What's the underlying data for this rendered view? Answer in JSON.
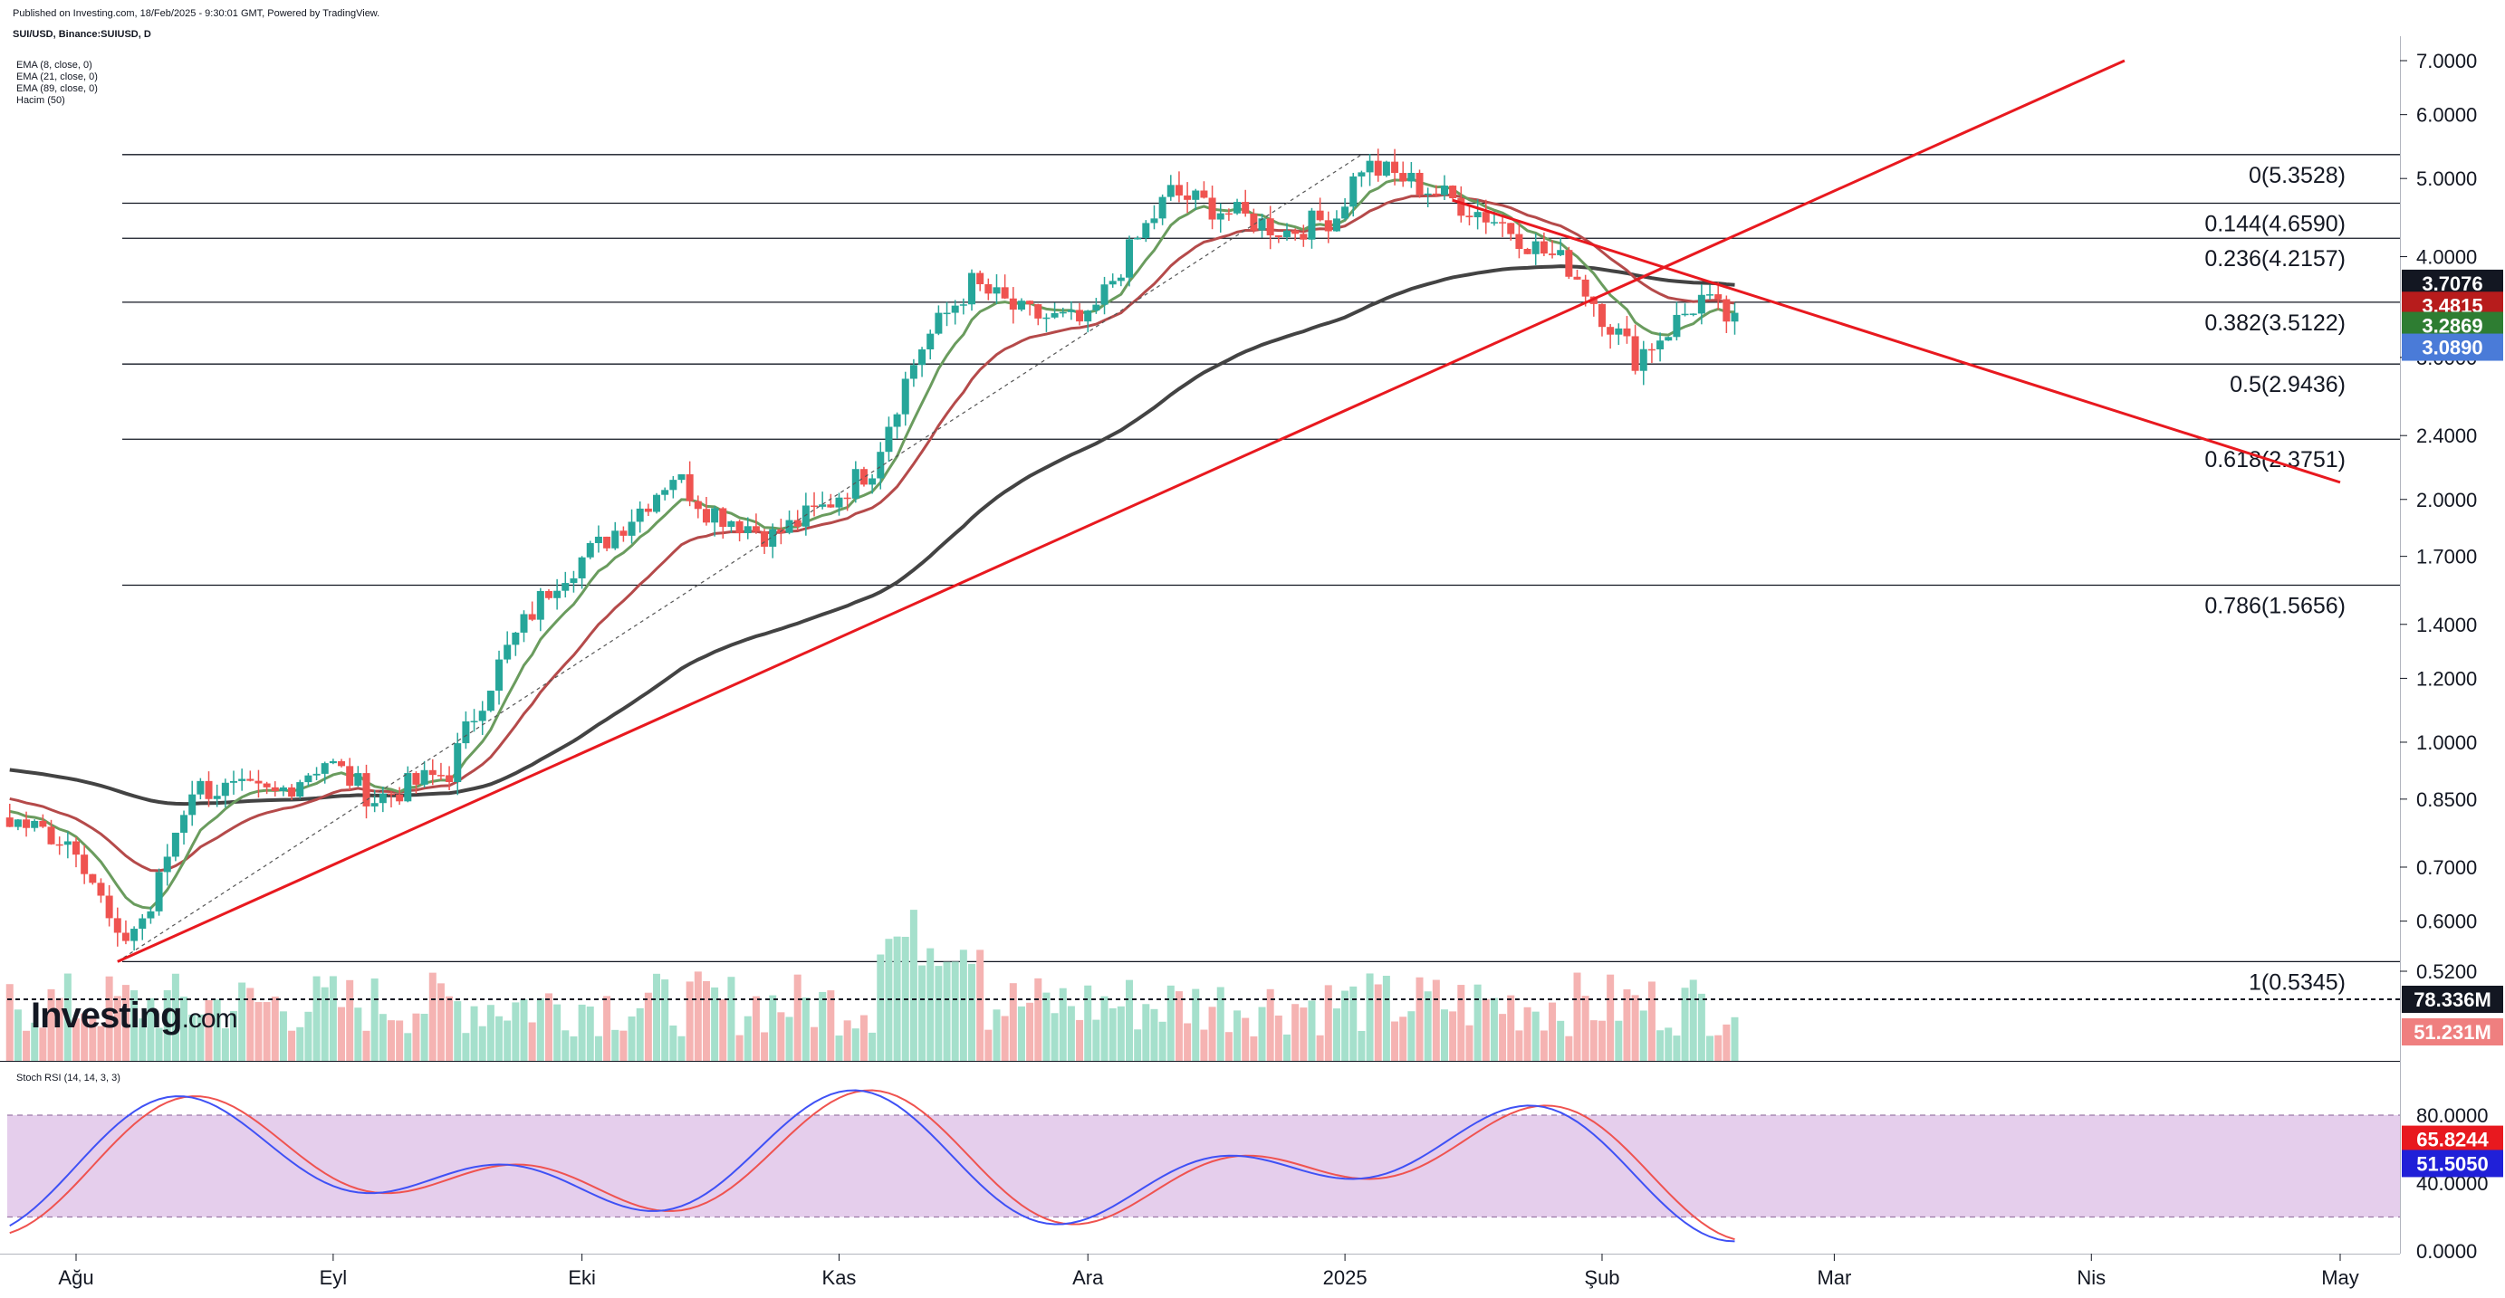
{
  "header": {
    "published": "Published on Investing.com, 18/Feb/2025 - 9:30:01 GMT, Powered by TradingView.",
    "symbol": "SUI/USD, Binance:SUIUSD, D"
  },
  "legend": [
    "EMA (8, close, 0)",
    "EMA (21, close, 0)",
    "EMA (89, close, 0)",
    "Hacim (50)"
  ],
  "stoch_label": "Stoch RSI (14, 14, 3, 3)",
  "logo": {
    "text": "Investing",
    "suffix": ".com"
  },
  "colors": {
    "up": "#26a69a",
    "down": "#ef5350",
    "ema8": "#6a9c5e",
    "ema21": "#b54a4a",
    "ema89": "#434343",
    "trend": "#e8191f",
    "stoch_k": "#3f51f5",
    "stoch_d": "#ef5350",
    "stoch_band": "#e1c6e9"
  },
  "chart_data": {
    "type": "candlestick",
    "symbol": "SUI/USD",
    "timeframe": "D",
    "price_axis": {
      "scale": "log",
      "ticks": [
        "7.0000",
        "6.0000",
        "5.0000",
        "4.0000",
        "3.0000",
        "2.4000",
        "2.0000",
        "1.7000",
        "1.4000",
        "1.2000",
        "1.0000",
        "0.8500",
        "0.7000",
        "0.6000",
        "0.5200"
      ]
    },
    "time_axis": {
      "labels": [
        "Ağu",
        "Eyl",
        "Eki",
        "Kas",
        "Ara",
        "2025",
        "Şub",
        "Mar",
        "Nis",
        "May"
      ]
    },
    "fibonacci": [
      {
        "label": "0(5.3528)",
        "level": 0,
        "price": 5.3528
      },
      {
        "label": "0.144(4.6590)",
        "level": 0.144,
        "price": 4.659
      },
      {
        "label": "0.236(4.2157)",
        "level": 0.236,
        "price": 4.2157
      },
      {
        "label": "0.382(3.5122)",
        "level": 0.382,
        "price": 3.5122
      },
      {
        "label": "0.5(2.9436)",
        "level": 0.5,
        "price": 2.9436
      },
      {
        "label": "0.618(2.3751)",
        "level": 0.618,
        "price": 2.3751
      },
      {
        "label": "0.786(1.5656)",
        "level": 0.786,
        "price": 1.5656
      },
      {
        "label": "1(0.5345)",
        "level": 1,
        "price": 0.5345
      }
    ],
    "price_badges": [
      {
        "label": "3.7076",
        "price": 3.7076,
        "color": "#131722"
      },
      {
        "label": "3.4815",
        "price": 3.4815,
        "color": "#b71c1c"
      },
      {
        "label": "3.2869",
        "price": 3.2869,
        "color": "#2e7d32"
      },
      {
        "label": "3.0890",
        "price": 3.089,
        "color": "#4a7bd8"
      }
    ],
    "volume_badges": [
      {
        "label": "78.336M",
        "color": "#131722"
      },
      {
        "label": "51.231M",
        "color": "#ef7f7f"
      }
    ],
    "stoch_rsi": {
      "ticks": [
        "80.0000",
        "40.0000",
        "0.0000"
      ],
      "band": [
        20,
        80
      ],
      "badges": [
        {
          "label": "65.8244",
          "value": 65.8244,
          "color": "#e8191f"
        },
        {
          "label": "51.5050",
          "value": 51.505,
          "color": "#2020d8"
        }
      ]
    }
  }
}
